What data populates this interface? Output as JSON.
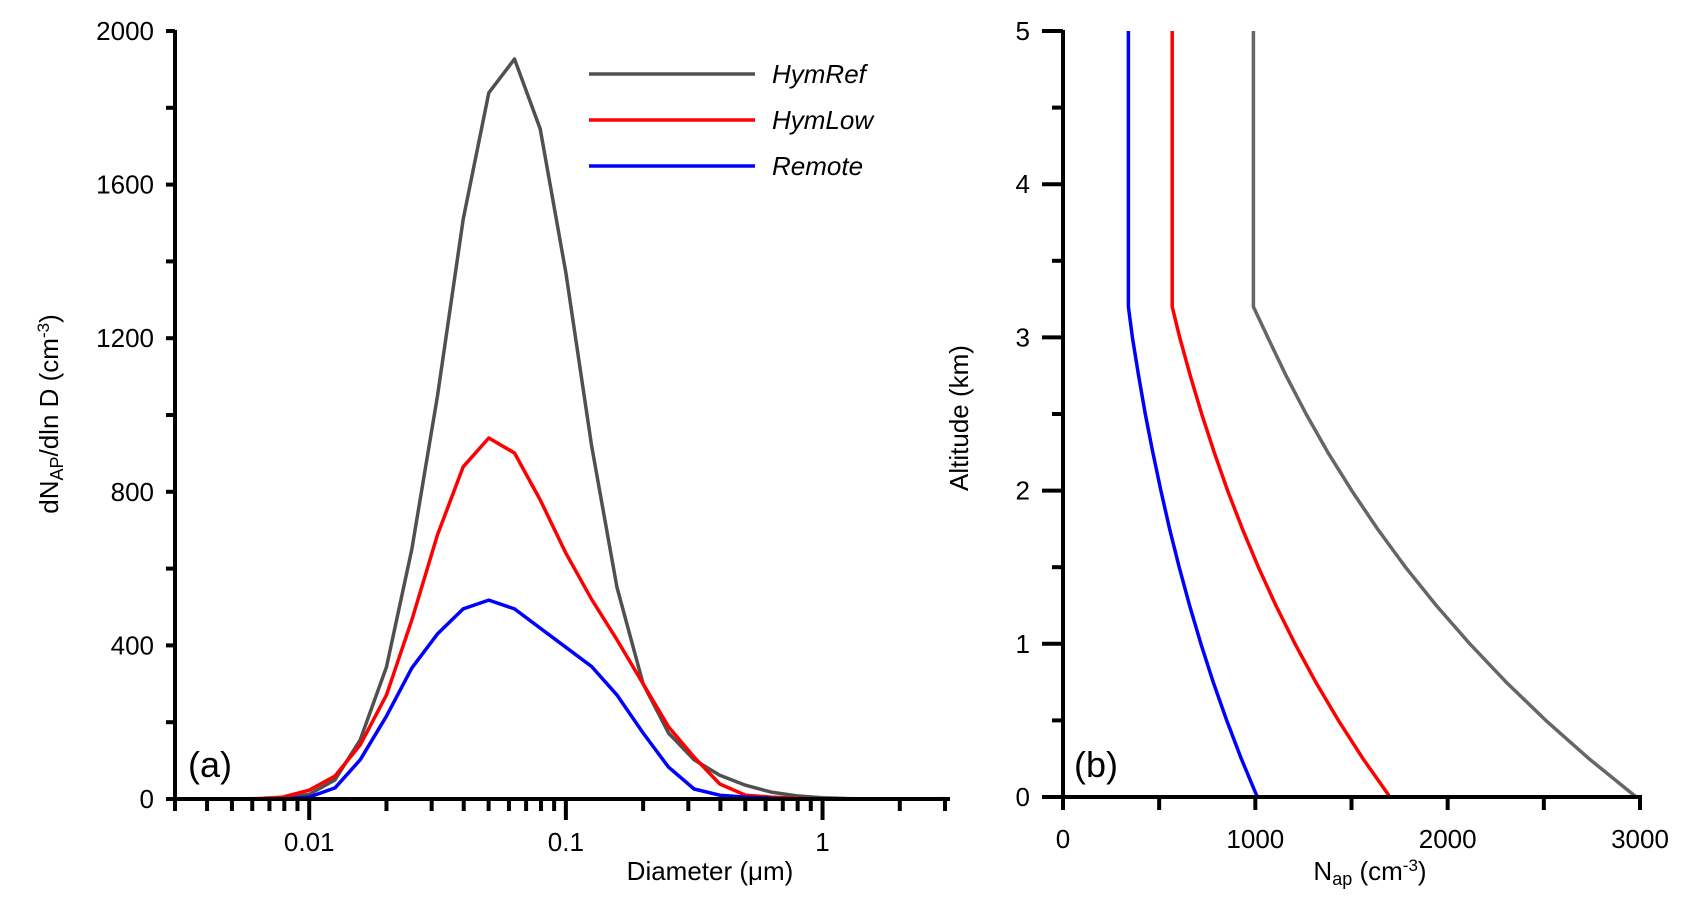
{
  "chart_data": [
    {
      "panel": "(a)",
      "type": "line",
      "title": "",
      "xlabel": "Diameter (μm)",
      "ylabel_main": "dN",
      "ylabel_sub": "AP",
      "ylabel_rest": "/dln D  (cm",
      "ylabel_sup": "-3",
      "ylabel_end": ")",
      "xscale": "log",
      "xlim": [
        0.003,
        3
      ],
      "ylim": [
        0,
        2000
      ],
      "x_tick_labels": [
        {
          "value": 0.01,
          "label": "0.01"
        },
        {
          "value": 0.1,
          "label": "0.1"
        },
        {
          "value": 1,
          "label": "1"
        }
      ],
      "y_tick_labels": [
        {
          "value": 0,
          "label": "0"
        },
        {
          "value": 400,
          "label": "400"
        },
        {
          "value": 800,
          "label": "800"
        },
        {
          "value": 1200,
          "label": "1200"
        },
        {
          "value": 1600,
          "label": "1600"
        },
        {
          "value": 2000,
          "label": "2000"
        }
      ],
      "y_minor_ticks": [
        200,
        600,
        1000,
        1400,
        1800
      ],
      "legend_position": "top-right",
      "grid": false,
      "x": [
        0.005,
        0.0063,
        0.0079,
        0.01,
        0.0126,
        0.0158,
        0.02,
        0.0251,
        0.0316,
        0.0398,
        0.0501,
        0.0631,
        0.0794,
        0.1,
        0.126,
        0.158,
        0.2,
        0.251,
        0.316,
        0.398,
        0.501,
        0.631,
        0.794,
        1.0,
        1.26,
        1.58,
        2.0,
        2.51,
        3.0
      ],
      "series": [
        {
          "name": "HymRef",
          "color": "#505050",
          "values": [
            0,
            0,
            2,
            12,
            50,
            154,
            344,
            650,
            1050,
            1510,
            1839,
            1927,
            1745,
            1370,
            920,
            552,
            300,
            172,
            102,
            62,
            36,
            18,
            8,
            3,
            1,
            0,
            0,
            0,
            0
          ]
        },
        {
          "name": "HymLow",
          "color": "#ff0000",
          "values": [
            0,
            1,
            5,
            23,
            60,
            141,
            271,
            466,
            688,
            865,
            940,
            901,
            779,
            640,
            520,
            415,
            300,
            188,
            109,
            39,
            10,
            5,
            2,
            0,
            0,
            0,
            0,
            0,
            1
          ]
        },
        {
          "name": "Remote",
          "color": "#0000ff",
          "values": [
            0,
            0,
            0,
            5,
            29,
            102,
            216,
            341,
            430,
            495,
            518,
            495,
            445,
            395,
            345,
            271,
            172,
            83,
            26,
            10,
            5,
            2,
            0,
            0,
            0,
            0,
            0,
            0,
            0
          ]
        }
      ]
    },
    {
      "panel": "(b)",
      "type": "line",
      "title": "",
      "xlabel_main": "N",
      "xlabel_sub": "ap",
      "xlabel_rest": "  (cm",
      "xlabel_sup": "-3",
      "xlabel_end": ")",
      "ylabel": "Altitude (km)",
      "xlim": [
        0,
        3000
      ],
      "ylim": [
        0,
        5
      ],
      "x_tick_labels": [
        {
          "value": 0,
          "label": "0"
        },
        {
          "value": 1000,
          "label": "1000"
        },
        {
          "value": 2000,
          "label": "2000"
        },
        {
          "value": 3000,
          "label": "3000"
        }
      ],
      "x_minor_ticks": [
        500,
        1500,
        2500
      ],
      "y_tick_labels": [
        {
          "value": 0,
          "label": "0"
        },
        {
          "value": 1,
          "label": "1"
        },
        {
          "value": 2,
          "label": "2"
        },
        {
          "value": 3,
          "label": "3"
        },
        {
          "value": 4,
          "label": "4"
        },
        {
          "value": 5,
          "label": "5"
        }
      ],
      "y_minor_ticks": [
        0.5,
        1.5,
        2.5,
        3.5,
        4.5
      ],
      "grid": false,
      "altitude_km": [
        0,
        0.25,
        0.5,
        0.75,
        1.0,
        1.25,
        1.5,
        1.75,
        2.0,
        2.25,
        2.5,
        2.75,
        3.0,
        3.2,
        3.5,
        4.0,
        4.5,
        5.0
      ],
      "series": [
        {
          "name": "HymRef",
          "color": "#666666",
          "values": [
            2980,
            2735,
            2510,
            2304,
            2115,
            1941,
            1781,
            1635,
            1501,
            1377,
            1264,
            1160,
            1065,
            990,
            990,
            990,
            990,
            990
          ]
        },
        {
          "name": "HymLow",
          "color": "#ff0000",
          "values": [
            1700,
            1560,
            1432,
            1314,
            1206,
            1107,
            1016,
            933,
            856,
            786,
            721,
            662,
            607,
            568,
            568,
            568,
            568,
            568
          ]
        },
        {
          "name": "Remote",
          "color": "#0000ff",
          "values": [
            1010,
            927,
            851,
            781,
            717,
            658,
            604,
            554,
            509,
            467,
            428,
            393,
            361,
            340,
            340,
            340,
            340,
            340
          ]
        }
      ]
    }
  ],
  "legend": [
    {
      "label": "HymRef",
      "color": "#505050"
    },
    {
      "label": "HymLow",
      "color": "#ff0000"
    },
    {
      "label": "Remote",
      "color": "#0000ff"
    }
  ]
}
